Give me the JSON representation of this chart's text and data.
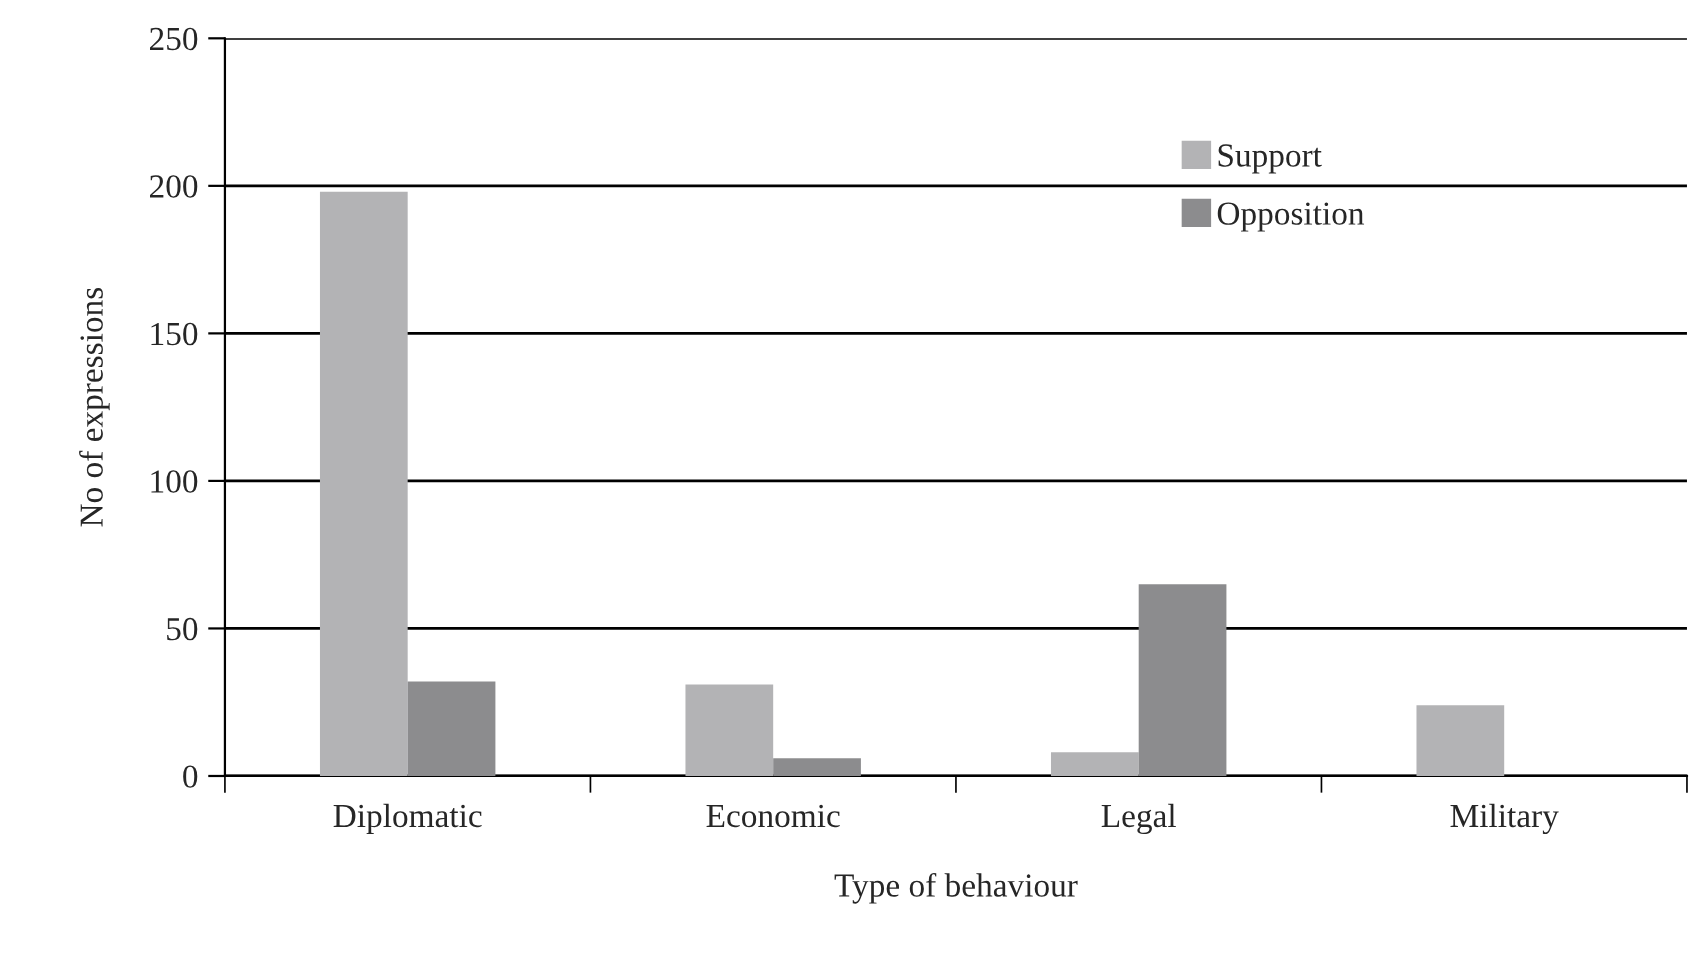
{
  "chart_data": {
    "type": "bar",
    "xlabel": "Type of behaviour",
    "ylabel": "No of expressions",
    "categories": [
      "Diplomatic",
      "Economic",
      "Legal",
      "Military"
    ],
    "series": [
      {
        "name": "Support",
        "color": "#b3b3b5",
        "values": [
          198,
          31,
          8,
          24
        ]
      },
      {
        "name": "Opposition",
        "color": "#8c8c8e",
        "values": [
          32,
          6,
          65,
          null
        ]
      }
    ],
    "ylim": [
      0,
      250
    ],
    "yticks": [
      0,
      50,
      100,
      150,
      200,
      250
    ],
    "grid": "y",
    "legend": "top right"
  }
}
